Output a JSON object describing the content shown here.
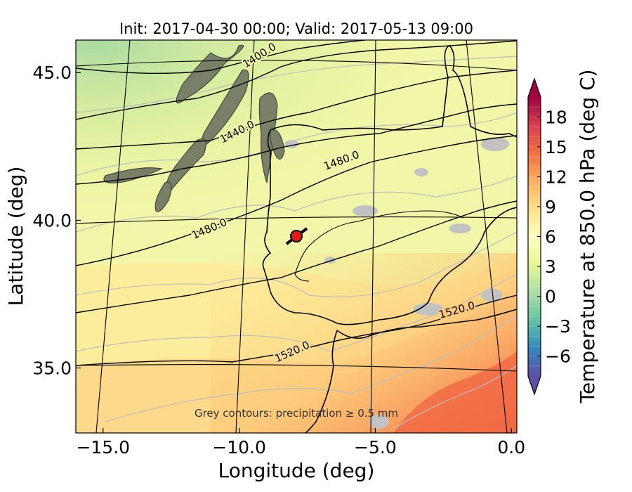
{
  "title": "Init: 2017-04-30 00:00; Valid: 2017-05-13 09:00",
  "annotation": "Grey contours: precipitation ≥ 0.5 mm",
  "chart_data": {
    "type": "heatmap",
    "title": "Init: 2017-04-30 00:00; Valid: 2017-05-13 09:00",
    "xlabel": "Longitude (deg)",
    "ylabel": "Latitude (deg)",
    "xlim": [
      -16.0,
      0.2
    ],
    "ylim": [
      32.8,
      46.1
    ],
    "x_ticks": [
      -15.0,
      -10.0,
      -5.0,
      0.0
    ],
    "x_tick_labels": [
      "−15.0",
      "−10.0",
      "−5.0",
      "0.0"
    ],
    "y_ticks": [
      35.0,
      40.0,
      45.0
    ],
    "y_tick_labels": [
      "35.0",
      "40.0",
      "45.0"
    ],
    "grid": true,
    "colorbar": {
      "label": "Temperature at 850.0 hPa (deg C)",
      "min": -8,
      "max": 20,
      "extend": "both",
      "ticks": [
        -6,
        -3,
        0,
        3,
        6,
        9,
        12,
        15,
        18
      ],
      "tick_labels": [
        "−6",
        "−3",
        "0",
        "3",
        "6",
        "9",
        "12",
        "15",
        "18"
      ],
      "colormap": "Spectral_r",
      "colors": [
        "#5e4fa2",
        "#3288bd",
        "#66c2a5",
        "#abdda4",
        "#e6f598",
        "#ffffbf",
        "#fee08b",
        "#fdae61",
        "#f46d43",
        "#d53e4f",
        "#9e0142"
      ]
    },
    "geopotential_contours": [
      {
        "label": "1400.0",
        "value": 1400.0
      },
      {
        "label": "1440.0",
        "value": 1440.0
      },
      {
        "label": "1480.0",
        "value": 1480.0
      },
      {
        "label": "1480.0",
        "value": 1480.0
      },
      {
        "label": "1520.0",
        "value": 1520.0
      },
      {
        "label": "1520.0",
        "value": 1520.0
      }
    ],
    "marker": {
      "lon": -7.6,
      "lat": 39.3,
      "color": "#e31a1c"
    }
  }
}
